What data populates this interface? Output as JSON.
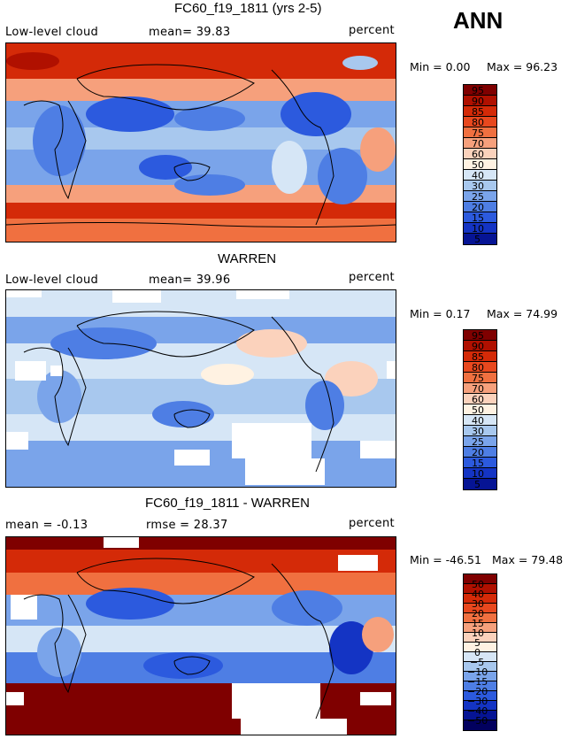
{
  "header": {
    "season": "ANN"
  },
  "panels": [
    {
      "title": "FC60_f19_1811 (yrs 2-5)",
      "left_label": "Low-level cloud",
      "center_label": "mean=  39.83",
      "right_label": "percent",
      "min_label": "Min =   0.00",
      "max_label": "Max =  96.23",
      "scale": "a",
      "colorbar_labels": [
        "95",
        "90",
        "85",
        "80",
        "75",
        "70",
        "60",
        "50",
        "40",
        "30",
        "25",
        "20",
        "15",
        "10",
        "5"
      ]
    },
    {
      "title": "WARREN",
      "left_label": "Low-level cloud",
      "center_label": "mean=  39.96",
      "right_label": "percent",
      "min_label": "Min =   0.17",
      "max_label": "Max =  74.99",
      "scale": "a",
      "colorbar_labels": [
        "95",
        "90",
        "85",
        "80",
        "75",
        "70",
        "60",
        "50",
        "40",
        "30",
        "25",
        "20",
        "15",
        "10",
        "5"
      ]
    },
    {
      "title": "FC60_f19_1811 - WARREN",
      "left_label": "mean =  -0.13",
      "center_label": "rmse =  28.37",
      "right_label": "percent",
      "min_label": "Min = -46.51",
      "max_label": "Max =  79.48",
      "scale": "d",
      "colorbar_labels": [
        "50",
        "40",
        "30",
        "20",
        "15",
        "10",
        "5",
        "0",
        "−5",
        "−10",
        "−15",
        "−20",
        "−30",
        "−40",
        "−50"
      ]
    }
  ],
  "colors": {
    "scale_a": [
      "#7f0000",
      "#b01000",
      "#d42a08",
      "#e8481e",
      "#f07040",
      "#f6a07c",
      "#fbd2bc",
      "#fff2e2",
      "#d6e6f6",
      "#a8c8ee",
      "#7aa4ea",
      "#4e7ee4",
      "#2c5ade",
      "#1434c4",
      "#061494"
    ],
    "scale_d": [
      "#7f0000",
      "#b01000",
      "#d42a08",
      "#e8481e",
      "#f07040",
      "#f6a07c",
      "#fbd2bc",
      "#fff2e2",
      "#d6e6f6",
      "#a8c8ee",
      "#7aa4ea",
      "#4e7ee4",
      "#2c5ade",
      "#1434c4",
      "#061494",
      "#02005e"
    ]
  }
}
